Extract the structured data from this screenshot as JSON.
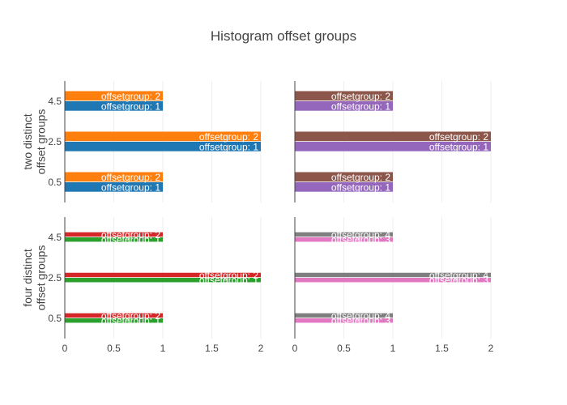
{
  "chart_data": {
    "type": "bar",
    "orientation": "horizontal",
    "title": "Histogram offset groups",
    "x_ticks": [
      "0",
      "0.5",
      "1",
      "1.5",
      "2"
    ],
    "xlim": [
      0,
      2
    ],
    "y_ticks": [
      "0.5",
      "2.5",
      "4.5"
    ],
    "grid": true,
    "panels": [
      {
        "row": 0,
        "col": 0,
        "ylabel": [
          "two distinct",
          "offset groups"
        ],
        "categories": [
          0.5,
          2.5,
          4.5
        ],
        "series": [
          {
            "label": "offsetgroup: 1",
            "color": "#1f77b4",
            "values": [
              1,
              2,
              1
            ]
          },
          {
            "label": "offsetgroup: 2",
            "color": "#ff7f0e",
            "values": [
              1,
              2,
              1
            ]
          }
        ]
      },
      {
        "row": 0,
        "col": 1,
        "ylabel": null,
        "categories": [
          0.5,
          2.5,
          4.5
        ],
        "series": [
          {
            "label": "offsetgroup: 1",
            "color": "#9467bd",
            "values": [
              1,
              2,
              1
            ]
          },
          {
            "label": "offsetgroup: 2",
            "color": "#8c564b",
            "values": [
              1,
              2,
              1
            ]
          }
        ]
      },
      {
        "row": 1,
        "col": 0,
        "ylabel": [
          "four distinct",
          "offset groups"
        ],
        "categories": [
          0.5,
          2.5,
          4.5
        ],
        "series": [
          {
            "label": "offsetgroup: 1",
            "color": "#2ca02c",
            "values": [
              1,
              2,
              1
            ]
          },
          {
            "label": "offsetgroup: 2",
            "color": "#d62728",
            "values": [
              1,
              2,
              1
            ]
          }
        ]
      },
      {
        "row": 1,
        "col": 1,
        "ylabel": null,
        "categories": [
          0.5,
          2.5,
          4.5
        ],
        "series": [
          {
            "label": "offsetgroup: 3",
            "color": "#e377c2",
            "values": [
              1,
              2,
              1
            ]
          },
          {
            "label": "offsetgroup: 4",
            "color": "#7f7f7f",
            "values": [
              1,
              2,
              1
            ]
          }
        ]
      }
    ]
  }
}
